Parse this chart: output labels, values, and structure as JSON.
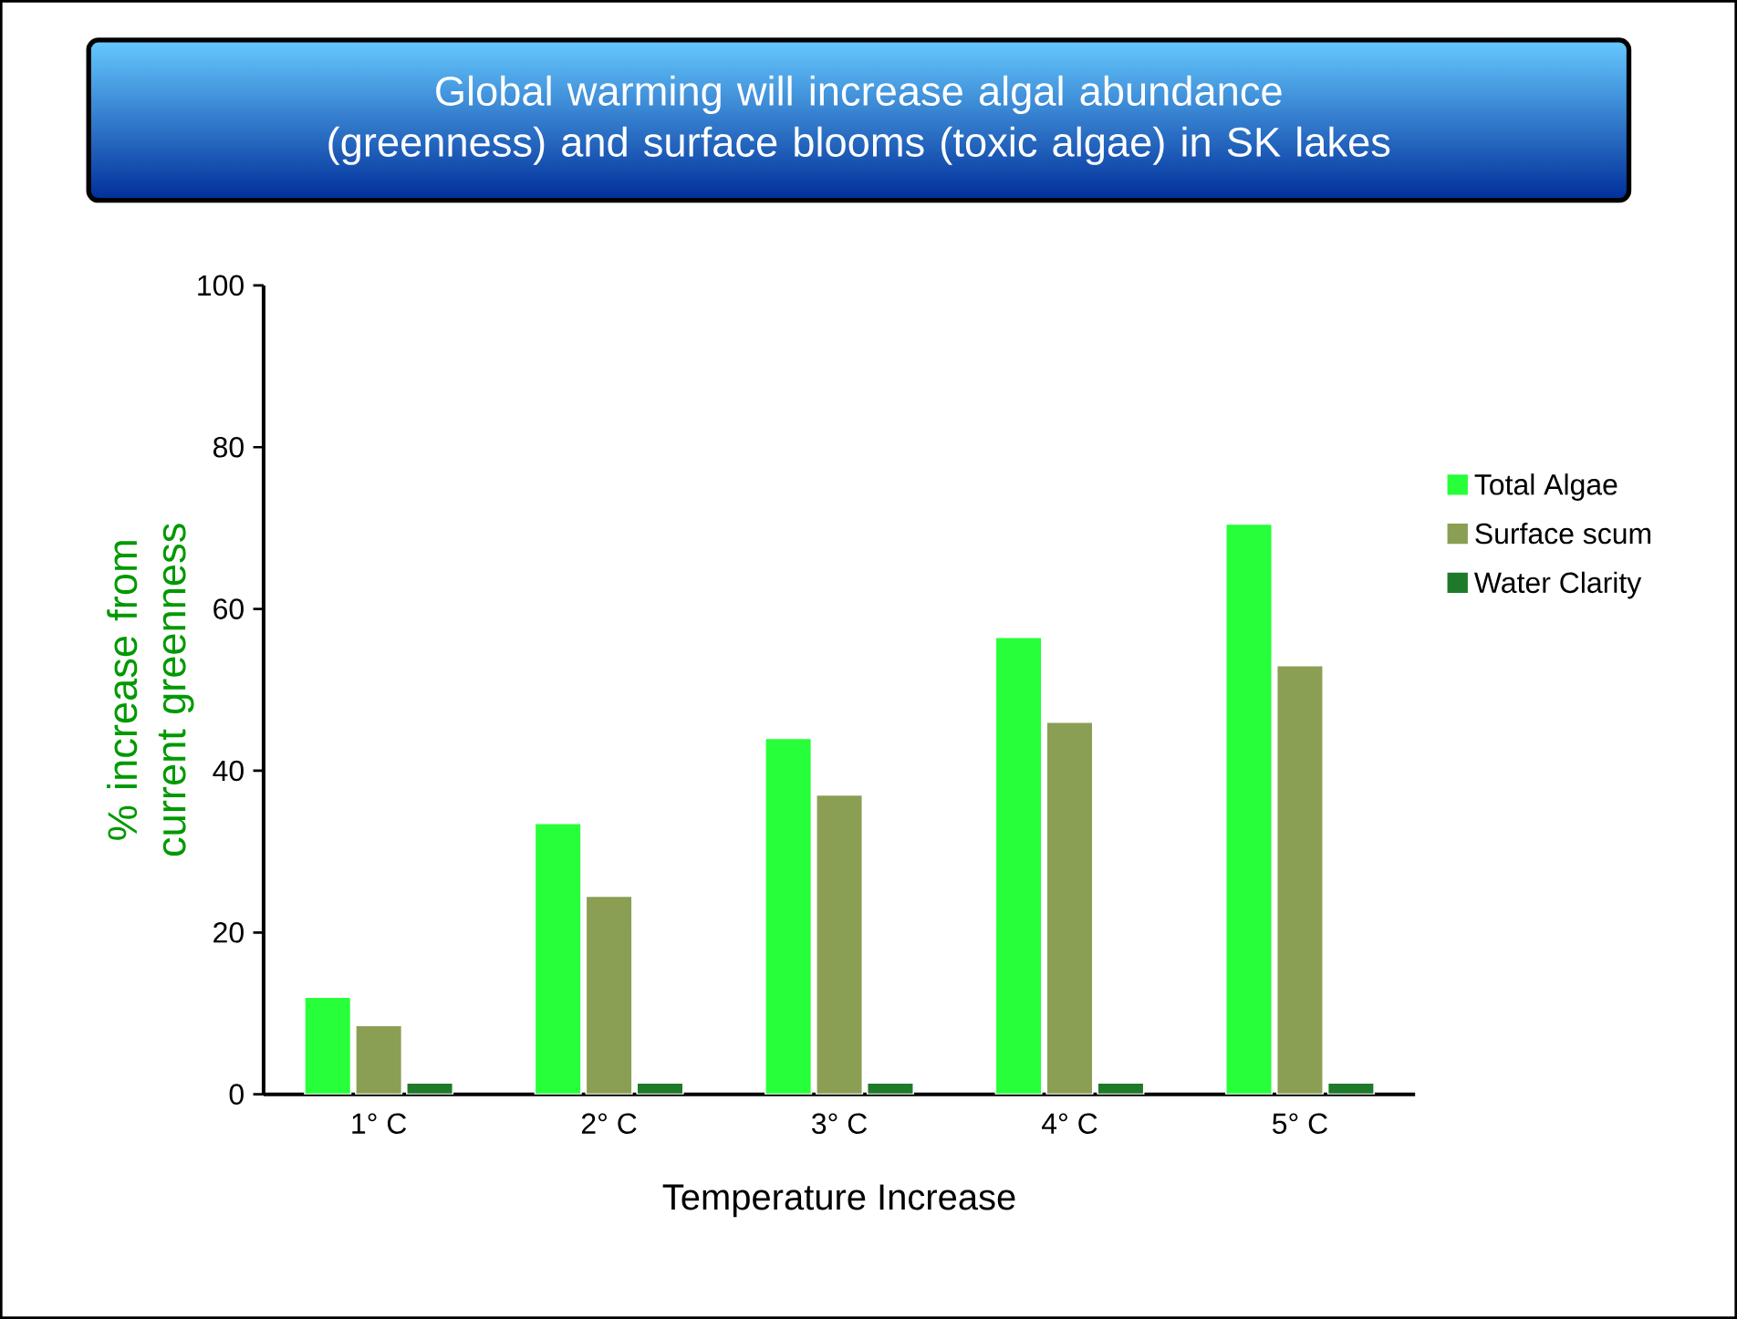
{
  "chart_data": {
    "type": "bar",
    "title": "Global warming will increase algal abundance (greenness) and surface blooms (toxic algae) in SK lakes",
    "xlabel": "Temperature Increase",
    "ylabel": "% increase from current greenness",
    "categories": [
      "1° C",
      "2° C",
      "3° C",
      "4° C",
      "5° C"
    ],
    "series": [
      {
        "name": "Total Algae",
        "color": "#26ff3a",
        "values": [
          12,
          33.5,
          44,
          56.5,
          70.5
        ]
      },
      {
        "name": "Surface scum",
        "color": "#8a9f54",
        "values": [
          8.5,
          24.5,
          37,
          46,
          53
        ]
      },
      {
        "name": "Water Clarity",
        "color": "#1e7a2a",
        "values": [
          1.4,
          1.4,
          1.4,
          1.4,
          1.4
        ]
      }
    ],
    "ylim": [
      0,
      100
    ],
    "yticks": [
      0,
      20,
      40,
      60,
      80,
      100
    ],
    "grid": false,
    "legend": "right"
  }
}
